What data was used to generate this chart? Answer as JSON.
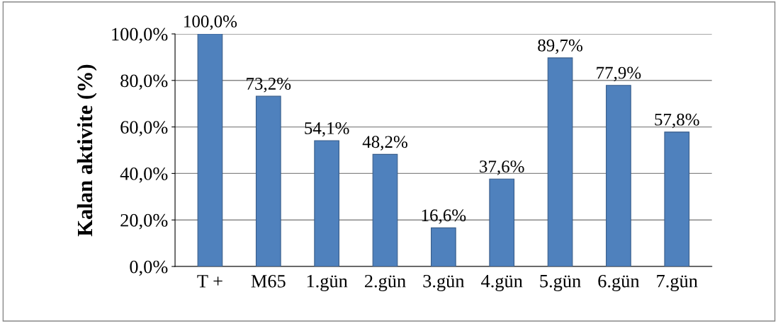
{
  "chart_data": {
    "type": "bar",
    "ylabel": "Kalan aktivite (%)",
    "categories": [
      "T +",
      "M65",
      "1.gün",
      "2.gün",
      "3.gün",
      "4.gün",
      "5.gün",
      "6.gün",
      "7.gün"
    ],
    "values": [
      100.0,
      73.2,
      54.1,
      48.2,
      16.6,
      37.6,
      89.7,
      77.9,
      57.8
    ],
    "value_labels": [
      "100,0%",
      "73,2%",
      "54,1%",
      "48,2%",
      "16,6%",
      "37,6%",
      "89,7%",
      "77,9%",
      "57,8%"
    ],
    "color": "#4f81bd",
    "ylim": [
      0,
      100
    ],
    "yticks": [
      {
        "value": 0,
        "label": "0,0%"
      },
      {
        "value": 20,
        "label": "20,0%"
      },
      {
        "value": 40,
        "label": "40,0%"
      },
      {
        "value": 60,
        "label": "60,0%"
      },
      {
        "value": 80,
        "label": "80,0%"
      },
      {
        "value": 100,
        "label": "100,0%"
      }
    ],
    "grid": "y"
  }
}
